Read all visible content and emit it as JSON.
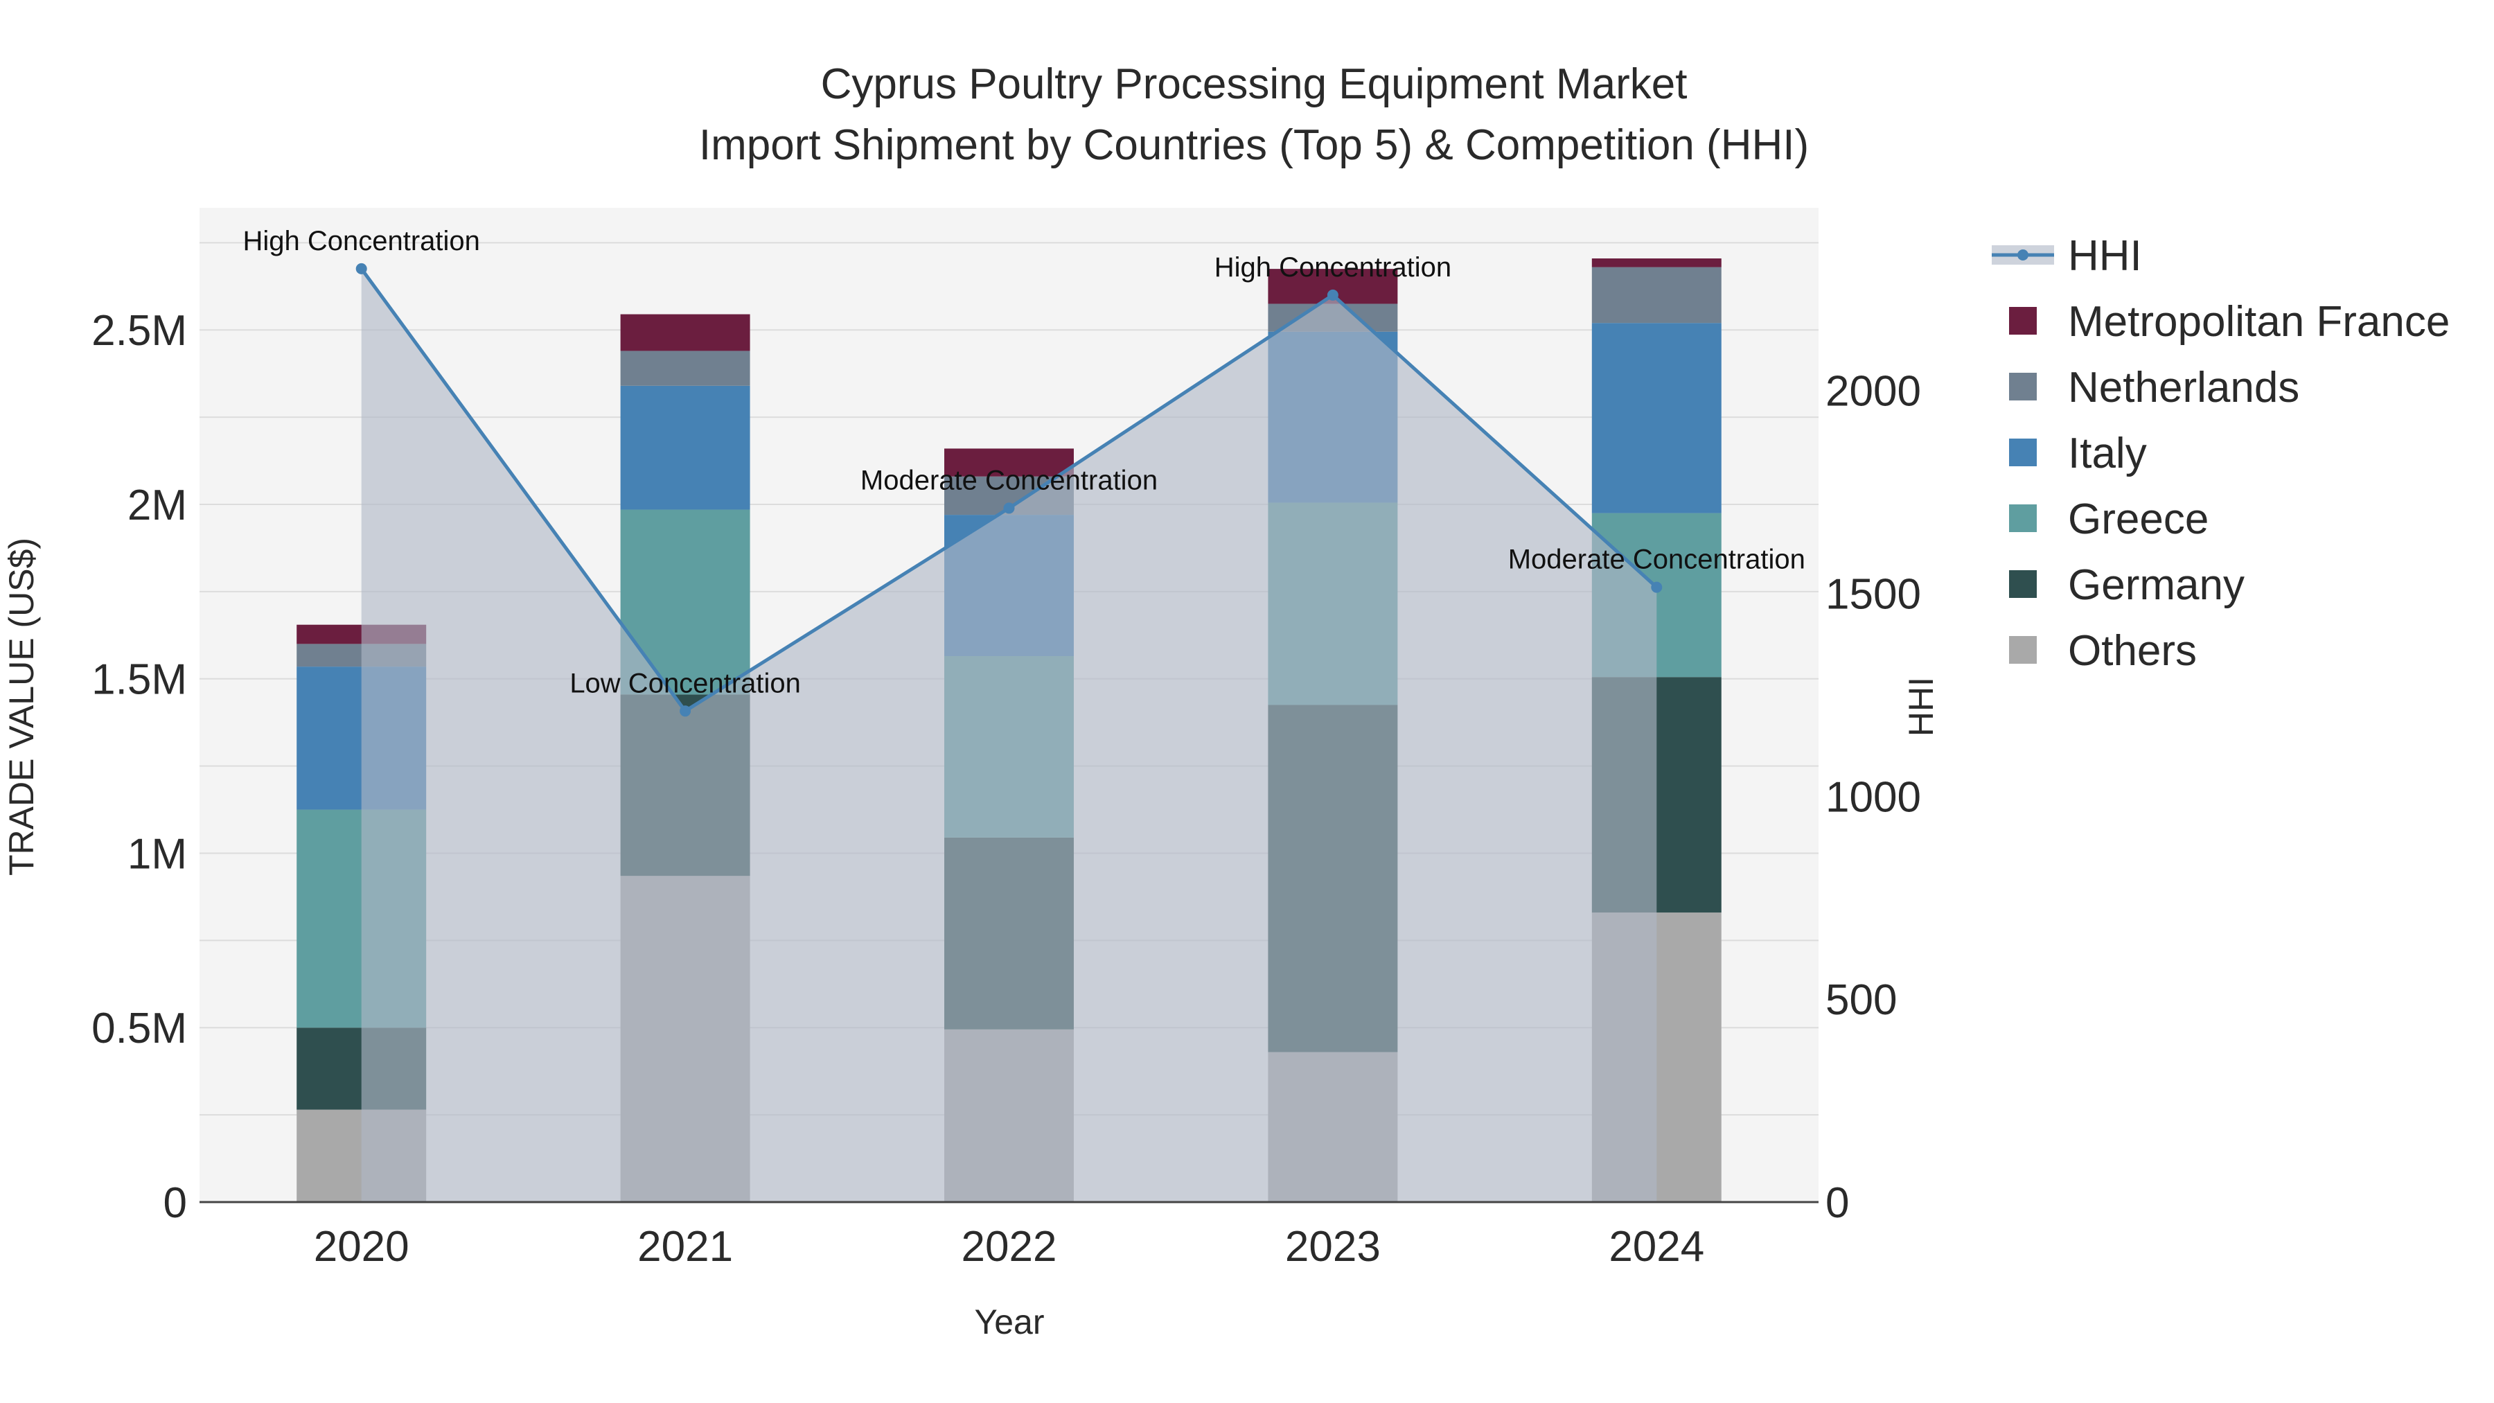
{
  "chart_data": {
    "type": "bar",
    "title": "Cyprus Poultry Processing Equipment Market",
    "subtitle": "Import Shipment by Countries (Top 5) & Competition (HHI)",
    "xlabel": "Year",
    "ylabel": "TRADE VALUE (US$)",
    "y2label": "HHI",
    "categories": [
      "2020",
      "2021",
      "2022",
      "2023",
      "2024"
    ],
    "ylim": [
      0,
      2850000
    ],
    "y2lim": [
      0,
      2450
    ],
    "yticks": [
      0,
      500000,
      1000000,
      1500000,
      2000000,
      2500000
    ],
    "yticklabels": [
      "0",
      "0.5M",
      "1M",
      "1.5M",
      "2M",
      "2.5M"
    ],
    "y2ticks": [
      0,
      500,
      1000,
      1500,
      2000
    ],
    "y2ticklabels": [
      "0",
      "500",
      "1000",
      "1500",
      "2000"
    ],
    "grid": true,
    "stacked": true,
    "legend_position": "right",
    "series": [
      {
        "name": "Others",
        "color": "#a9a9a9",
        "values": [
          265000,
          935000,
          495000,
          430000,
          830000
        ]
      },
      {
        "name": "Germany",
        "color": "#2f4f4f",
        "values": [
          235000,
          520000,
          550000,
          995000,
          675000
        ]
      },
      {
        "name": "Greece",
        "color": "#5f9ea0",
        "values": [
          625000,
          530000,
          520000,
          580000,
          470000
        ]
      },
      {
        "name": "Italy",
        "color": "#4682b4",
        "values": [
          410000,
          355000,
          405000,
          490000,
          545000
        ]
      },
      {
        "name": "Netherlands",
        "color": "#708090",
        "values": [
          65000,
          100000,
          110000,
          80000,
          160000
        ]
      },
      {
        "name": "Metropolitan France",
        "color": "#6b1e3f",
        "values": [
          55000,
          105000,
          80000,
          100000,
          25000
        ]
      }
    ],
    "hhi": {
      "name": "HHI",
      "color": "#4682b4",
      "values": [
        2300,
        1210,
        1710,
        2235,
        1515
      ],
      "labels": [
        "High Concentration",
        "Low Concentration",
        "Moderate Concentration",
        "High Concentration",
        "Moderate Concentration"
      ]
    },
    "legend": [
      "HHI",
      "Metropolitan France",
      "Netherlands",
      "Italy",
      "Greece",
      "Germany",
      "Others"
    ]
  }
}
